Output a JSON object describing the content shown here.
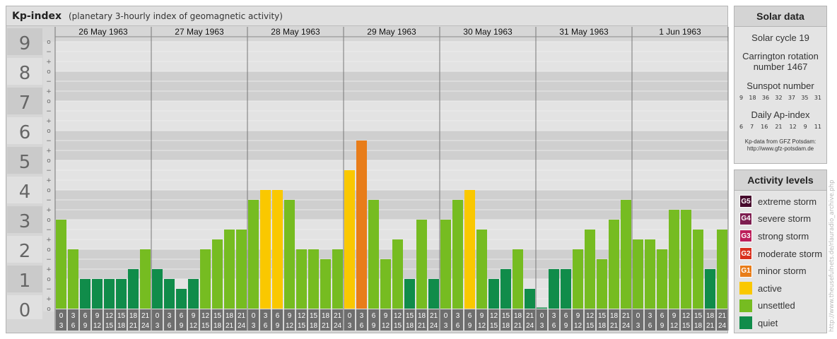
{
  "header": {
    "title": "Kp-index",
    "subtitle": "(planetary 3-hourly index of geomagnetic activity)"
  },
  "colors": {
    "quiet": "#108c4a",
    "unsettled": "#76bc21",
    "active": "#fac800",
    "G1": "#e87d1a",
    "G2": "#d9301e",
    "G3": "#bc1e5a",
    "G4": "#7d1e50",
    "G5": "#460a2c"
  },
  "chart_data": {
    "type": "bar",
    "title": "Kp-index",
    "ylim": [
      0,
      9
    ],
    "y_tick_labels": [
      "0",
      "1",
      "2",
      "3",
      "4",
      "5",
      "6",
      "7",
      "8",
      "9"
    ],
    "y_minor_labels": [
      "+",
      "o",
      "−"
    ],
    "days": [
      "26 May 1963",
      "27 May 1963",
      "28 May 1963",
      "29 May 1963",
      "30 May 1963",
      "31 May 1963",
      "1 Jun 1963"
    ],
    "interval_labels_top": [
      "0",
      "3",
      "6",
      "9",
      "12",
      "15",
      "18",
      "21"
    ],
    "interval_labels_bottom": [
      "3",
      "6",
      "9",
      "12",
      "15",
      "18",
      "21",
      "24"
    ],
    "values": [
      [
        3.0,
        2.0,
        1.0,
        1.0,
        1.0,
        1.0,
        1.333,
        2.0
      ],
      [
        1.333,
        1.0,
        0.667,
        1.0,
        2.0,
        2.333,
        2.667,
        2.667
      ],
      [
        3.667,
        4.0,
        4.0,
        3.667,
        2.0,
        2.0,
        1.667,
        2.0
      ],
      [
        4.667,
        5.667,
        3.667,
        1.667,
        2.333,
        1.0,
        3.0,
        1.0
      ],
      [
        3.0,
        3.667,
        4.0,
        2.667,
        1.0,
        1.333,
        2.0,
        0.667
      ],
      [
        0.0,
        1.333,
        1.333,
        2.0,
        2.667,
        1.667,
        3.0,
        3.667
      ],
      [
        2.333,
        2.333,
        2.0,
        3.333,
        3.333,
        2.667,
        1.333,
        2.667
      ]
    ]
  },
  "solar_data": {
    "heading": "Solar data",
    "solar_cycle": "Solar cycle 19",
    "carrington": "Carrington rotation number 1467",
    "sunspot_title": "Sunspot number",
    "sunspot_values": [
      "9",
      "18",
      "36",
      "32",
      "37",
      "35",
      "31"
    ],
    "ap_title": "Daily Ap-index",
    "ap_values": [
      "6",
      "7",
      "16",
      "21",
      "12",
      "9",
      "11"
    ],
    "source_line1": "Kp-data from GFZ Potsdam:",
    "source_line2": "http://www.gfz-potsdam.de"
  },
  "activity_levels": {
    "heading": "Activity levels",
    "items": [
      {
        "code": "G5",
        "label": "extreme storm",
        "color": "#460a2c"
      },
      {
        "code": "G4",
        "label": "severe storm",
        "color": "#7d1e50"
      },
      {
        "code": "G3",
        "label": "strong storm",
        "color": "#bc1e5a"
      },
      {
        "code": "G2",
        "label": "moderate storm",
        "color": "#d9301e"
      },
      {
        "code": "G1",
        "label": "minor storm",
        "color": "#e87d1a"
      },
      {
        "code": "",
        "label": "active",
        "color": "#fac800"
      },
      {
        "code": "",
        "label": "unsettled",
        "color": "#76bc21"
      },
      {
        "code": "",
        "label": "quiet",
        "color": "#108c4a"
      }
    ]
  },
  "watermark": "http://www.theusefulnets.de/rlauradio_archive.php"
}
